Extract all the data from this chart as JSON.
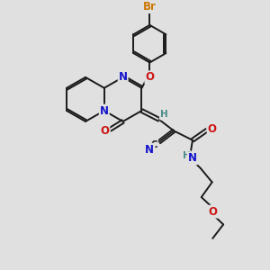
{
  "bg_color": "#e0e0e0",
  "bond_color": "#1a1a1a",
  "N_color": "#1414cc",
  "O_color": "#cc1414",
  "Br_color": "#cc7700",
  "H_color": "#4a8a8a",
  "lw": 1.4,
  "fs": 8.5,
  "fs_small": 7.5,
  "figsize": [
    3.0,
    3.0
  ],
  "dpi": 100,
  "xlim": [
    0,
    10
  ],
  "ylim": [
    0,
    10
  ]
}
